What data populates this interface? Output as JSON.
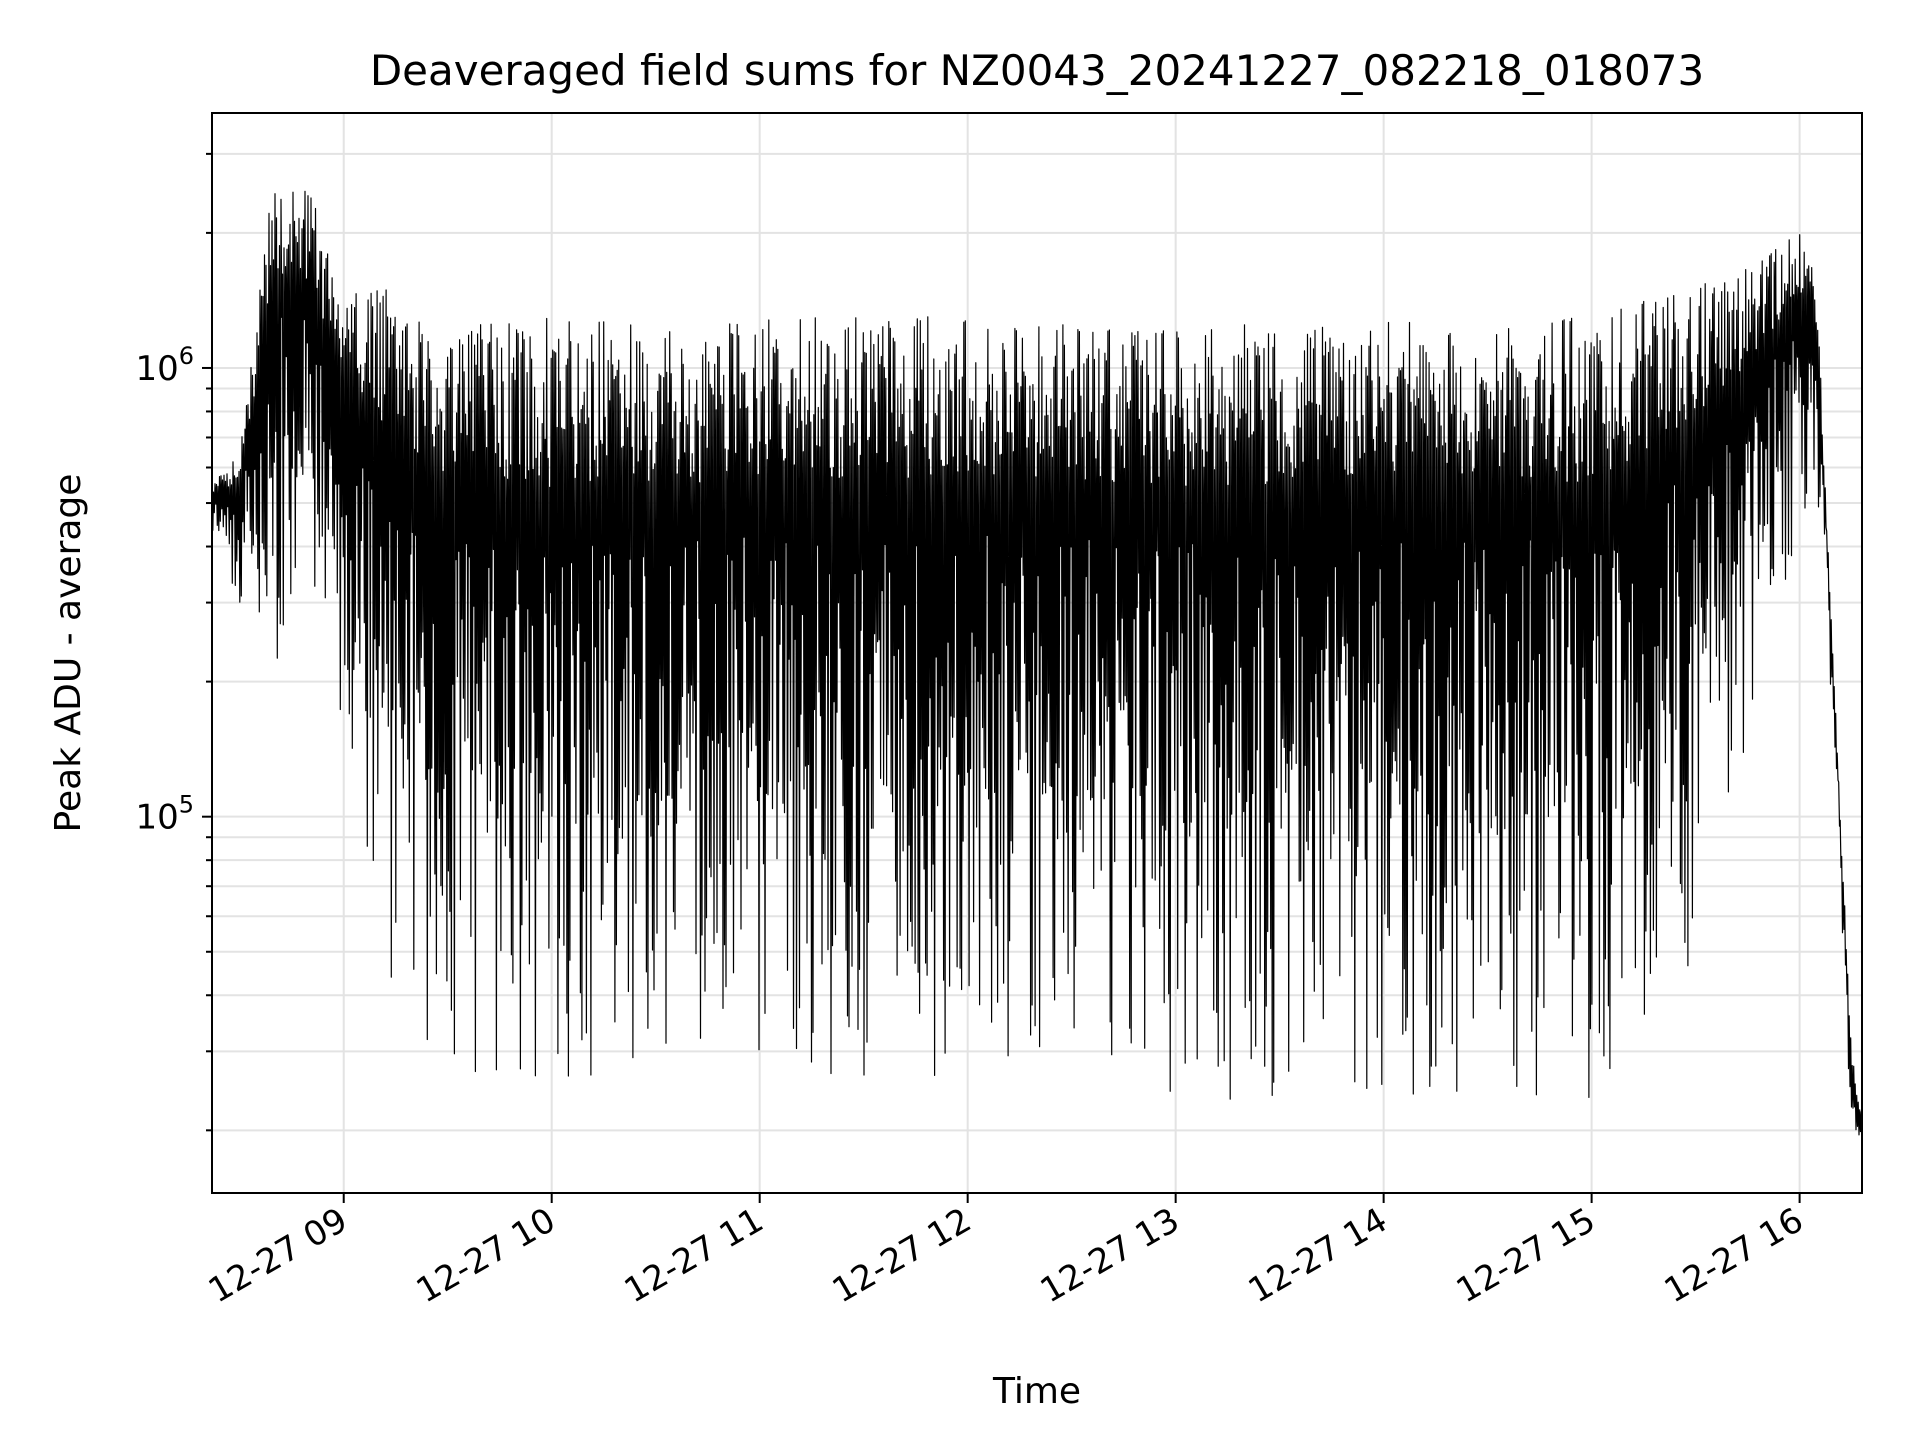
{
  "chart_data": {
    "type": "line",
    "title": "Deaveraged field sums for NZ0043_20241227_082218_018073",
    "xlabel": "Time",
    "ylabel": "Peak ADU - average",
    "y_scale": "log",
    "ylim": [
      14500,
      3700000
    ],
    "x_range": [
      "2024-12-27 08:22",
      "2024-12-27 16:18"
    ],
    "x_ticks": [
      {
        "time": "2024-12-27 09:00",
        "label": "12-27 09"
      },
      {
        "time": "2024-12-27 10:00",
        "label": "12-27 10"
      },
      {
        "time": "2024-12-27 11:00",
        "label": "12-27 11"
      },
      {
        "time": "2024-12-27 12:00",
        "label": "12-27 12"
      },
      {
        "time": "2024-12-27 13:00",
        "label": "12-27 13"
      },
      {
        "time": "2024-12-27 14:00",
        "label": "12-27 14"
      },
      {
        "time": "2024-12-27 15:00",
        "label": "12-27 15"
      },
      {
        "time": "2024-12-27 16:00",
        "label": "12-27 16"
      }
    ],
    "y_ticks": [
      {
        "value": 100000,
        "base": "10",
        "exp": "5"
      },
      {
        "value": 1000000,
        "base": "10",
        "exp": "6"
      }
    ],
    "grid": true,
    "legend": "none",
    "series": [
      {
        "color": "#000000",
        "times": [
          "2024-12-27 08:22",
          "2024-12-27 08:30",
          "2024-12-27 08:40",
          "2024-12-27 08:50",
          "2024-12-27 09:00",
          "2024-12-27 09:15",
          "2024-12-27 09:30",
          "2024-12-27 09:45",
          "2024-12-27 10:00",
          "2024-12-27 10:30",
          "2024-12-27 11:00",
          "2024-12-27 11:30",
          "2024-12-27 12:00",
          "2024-12-27 12:30",
          "2024-12-27 13:00",
          "2024-12-27 13:30",
          "2024-12-27 14:00",
          "2024-12-27 14:30",
          "2024-12-27 15:00",
          "2024-12-27 15:15",
          "2024-12-27 15:30",
          "2024-12-27 15:45",
          "2024-12-27 16:00",
          "2024-12-27 16:05",
          "2024-12-27 16:10",
          "2024-12-27 16:15",
          "2024-12-27 16:18"
        ],
        "peaks": [
          560000,
          650000,
          2800000,
          2500000,
          1500000,
          1550000,
          1250000,
          1300000,
          1300000,
          1250000,
          1300000,
          1300000,
          1300000,
          1250000,
          1250000,
          1250000,
          1300000,
          1300000,
          1300000,
          1450000,
          1600000,
          1700000,
          2000000,
          1600000,
          200000,
          30000,
          22000
        ],
        "troughs": [
          420000,
          300000,
          200000,
          250000,
          150000,
          35000,
          30000,
          22000,
          20000,
          24000,
          25000,
          24000,
          26000,
          27000,
          23000,
          23000,
          24000,
          23000,
          22000,
          28000,
          50000,
          150000,
          400000,
          500000,
          150000,
          18000,
          17000
        ]
      }
    ]
  }
}
